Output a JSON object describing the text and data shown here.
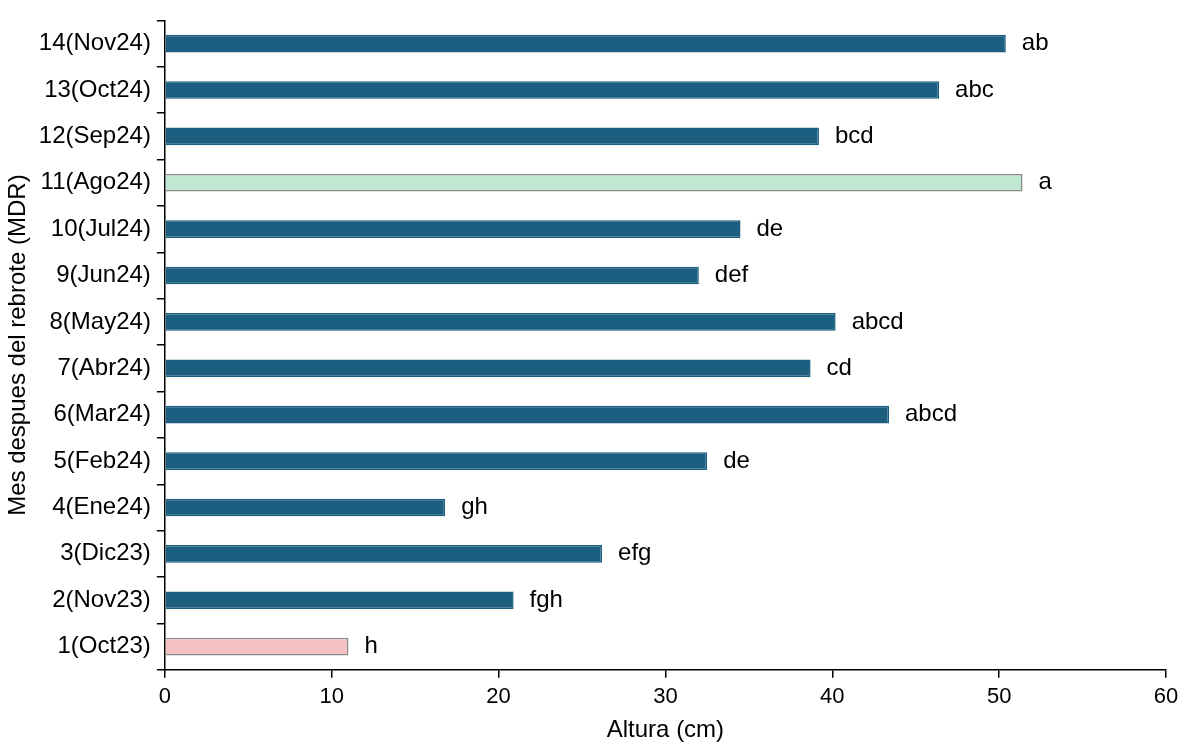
{
  "chart_data": {
    "type": "bar",
    "orientation": "horizontal",
    "xlabel": "Altura (cm)",
    "ylabel": "Mes despues del rebrote (MDR)",
    "categories": [
      "14(Nov24)",
      "13(Oct24)",
      "12(Sep24)",
      "11(Ago24)",
      "10(Jul24)",
      "9(Jun24)",
      "8(May24)",
      "7(Abr24)",
      "6(Mar24)",
      "5(Feb24)",
      "4(Ene24)",
      "3(Dic23)",
      "2(Nov23)",
      "1(Oct23)"
    ],
    "values": [
      50.4,
      46.4,
      39.2,
      51.4,
      34.5,
      32.0,
      40.2,
      38.7,
      43.4,
      32.5,
      16.8,
      26.2,
      20.9,
      11.0
    ],
    "colors": [
      "#1b5e80",
      "#1b5e80",
      "#1b5e80",
      "#bfe8d2",
      "#1b5e80",
      "#1b5e80",
      "#1b5e80",
      "#1b5e80",
      "#1b5e80",
      "#1b5e80",
      "#1b5e80",
      "#1b5e80",
      "#1b5e80",
      "#f4c2c2"
    ],
    "value_labels": [
      "ab",
      "abc",
      "bcd",
      "a",
      "de",
      "def",
      "abcd",
      "cd",
      "abcd",
      "de",
      "gh",
      "efg",
      "fgh",
      "h"
    ],
    "xlim": [
      0,
      60
    ],
    "xticks": [
      0,
      10,
      20,
      30,
      40,
      50,
      60
    ],
    "grid": false,
    "legend": false
  }
}
